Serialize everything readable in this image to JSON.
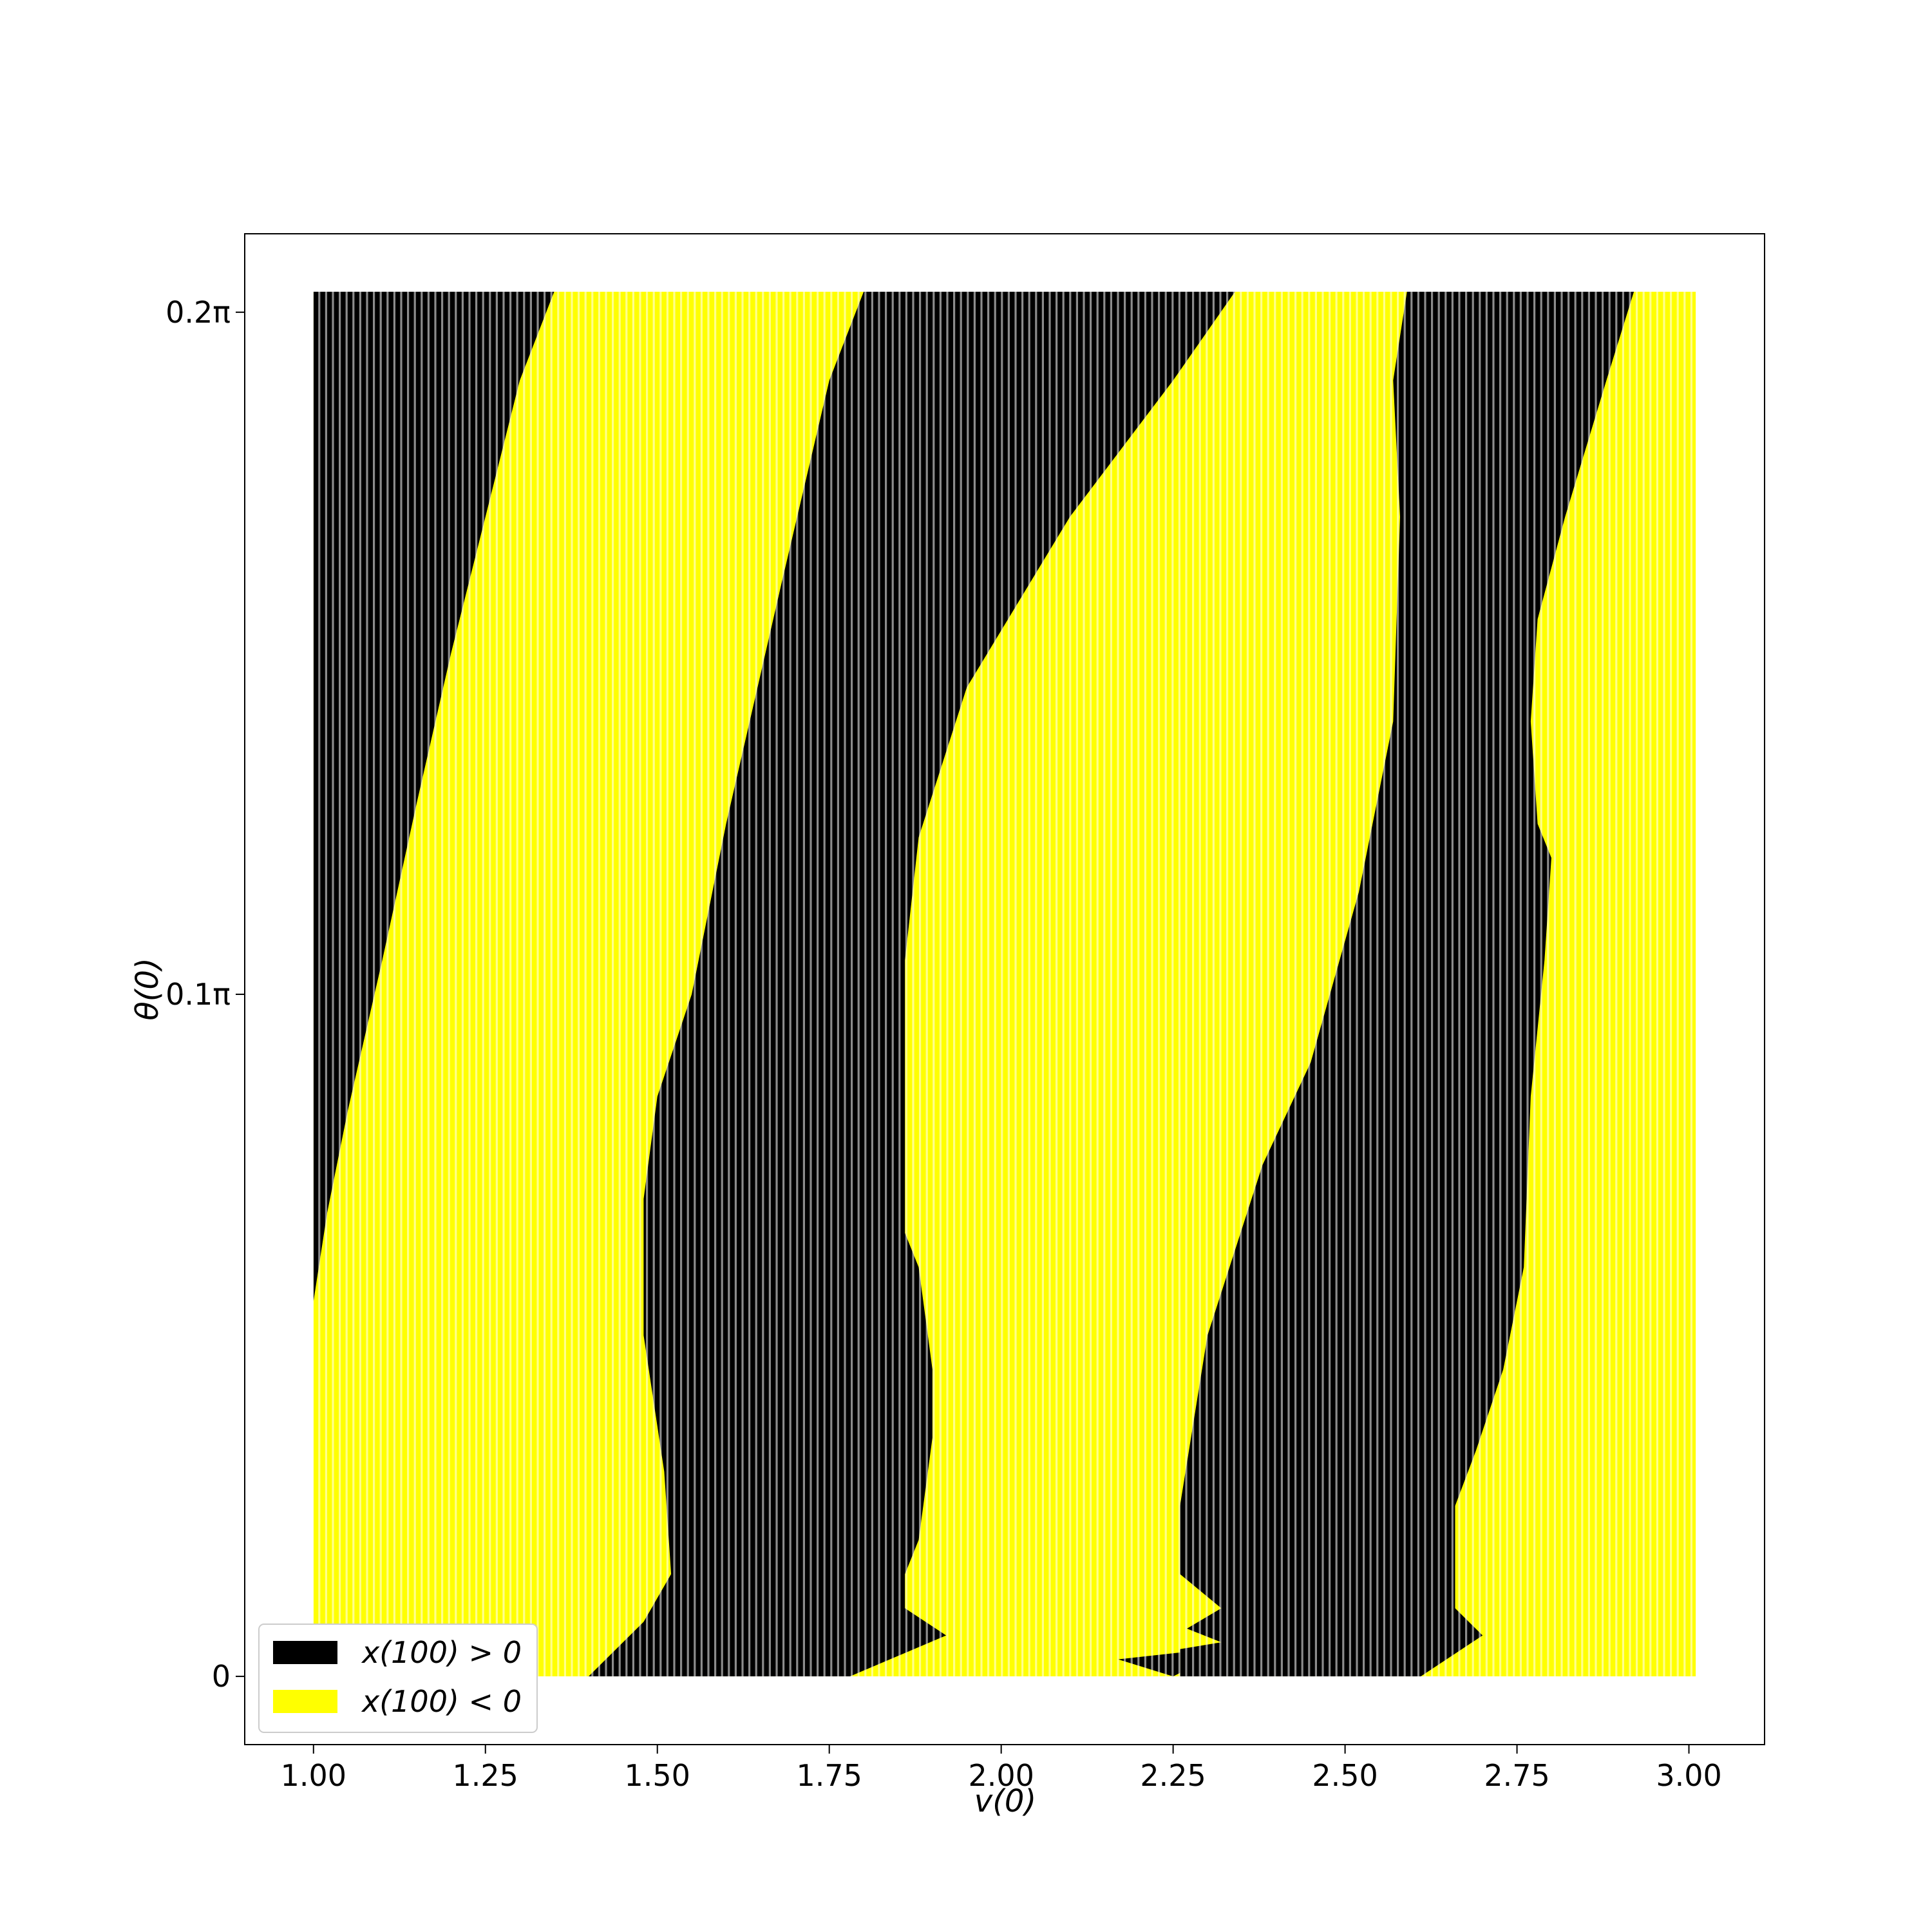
{
  "chart_data": {
    "type": "heatmap",
    "title": "",
    "xlabel": "v(0)",
    "ylabel": "θ(0)",
    "xlim": [
      0.9,
      3.11
    ],
    "ylim": [
      -0.01,
      0.2115
    ],
    "x_ticks": [
      {
        "value": 1.0,
        "label": "1.00"
      },
      {
        "value": 1.25,
        "label": "1.25"
      },
      {
        "value": 1.5,
        "label": "1.50"
      },
      {
        "value": 1.75,
        "label": "1.75"
      },
      {
        "value": 2.0,
        "label": "2.00"
      },
      {
        "value": 2.25,
        "label": "2.25"
      },
      {
        "value": 2.5,
        "label": "2.50"
      },
      {
        "value": 2.75,
        "label": "2.75"
      },
      {
        "value": 3.0,
        "label": "3.00"
      }
    ],
    "y_ticks": [
      {
        "value": 0.0,
        "label": "0"
      },
      {
        "value": 0.1,
        "label": "0.1π"
      },
      {
        "value": 0.2,
        "label": "0.2π"
      }
    ],
    "x_range": [
      1.0,
      3.01
    ],
    "y_range": [
      0.0,
      0.203
    ],
    "colors": {
      "positive": "#000000",
      "negative": "#ffff00"
    },
    "legend": {
      "position": "lower-left",
      "entries": [
        {
          "label": "x(100) > 0",
          "color": "#000000"
        },
        {
          "label": "x(100) < 0",
          "color": "#ffff00"
        }
      ]
    },
    "positive_regions": [
      {
        "name": "band-1",
        "boundary": [
          [
            1.0,
            0.203
          ],
          [
            1.35,
            0.203
          ],
          [
            1.3,
            0.19
          ],
          [
            1.25,
            0.17
          ],
          [
            1.2,
            0.15
          ],
          [
            1.15,
            0.128
          ],
          [
            1.1,
            0.105
          ],
          [
            1.05,
            0.083
          ],
          [
            1.02,
            0.068
          ],
          [
            1.0,
            0.055
          ]
        ]
      },
      {
        "name": "band-2",
        "boundary": [
          [
            1.8,
            0.203
          ],
          [
            2.34,
            0.203
          ],
          [
            2.25,
            0.19
          ],
          [
            2.1,
            0.17
          ],
          [
            1.95,
            0.145
          ],
          [
            1.88,
            0.123
          ],
          [
            1.86,
            0.105
          ],
          [
            1.86,
            0.065
          ],
          [
            1.88,
            0.06
          ],
          [
            1.9,
            0.045
          ],
          [
            1.9,
            0.035
          ],
          [
            1.88,
            0.02
          ],
          [
            1.86,
            0.015
          ],
          [
            1.86,
            0.01
          ],
          [
            1.92,
            0.006
          ],
          [
            1.85,
            0.003
          ],
          [
            1.78,
            0.0
          ],
          [
            1.4,
            0.0
          ],
          [
            1.48,
            0.008
          ],
          [
            1.52,
            0.015
          ],
          [
            1.51,
            0.03
          ],
          [
            1.48,
            0.05
          ],
          [
            1.48,
            0.07
          ],
          [
            1.5,
            0.085
          ],
          [
            1.55,
            0.1
          ],
          [
            1.6,
            0.125
          ],
          [
            1.68,
            0.16
          ],
          [
            1.75,
            0.19
          ]
        ]
      },
      {
        "name": "band-3",
        "boundary": [
          [
            2.59,
            0.203
          ],
          [
            2.92,
            0.203
          ],
          [
            2.88,
            0.19
          ],
          [
            2.82,
            0.17
          ],
          [
            2.78,
            0.155
          ],
          [
            2.77,
            0.14
          ],
          [
            2.78,
            0.125
          ],
          [
            2.8,
            0.12
          ],
          [
            2.79,
            0.105
          ],
          [
            2.77,
            0.085
          ],
          [
            2.76,
            0.06
          ],
          [
            2.73,
            0.045
          ],
          [
            2.69,
            0.033
          ],
          [
            2.66,
            0.025
          ],
          [
            2.66,
            0.01
          ],
          [
            2.7,
            0.006
          ],
          [
            2.67,
            0.004
          ],
          [
            2.61,
            0.0
          ],
          [
            2.26,
            0.0
          ],
          [
            2.26,
            0.004
          ],
          [
            2.32,
            0.005
          ],
          [
            2.27,
            0.007
          ],
          [
            2.32,
            0.01
          ],
          [
            2.26,
            0.015
          ],
          [
            2.26,
            0.025
          ],
          [
            2.3,
            0.05
          ],
          [
            2.38,
            0.075
          ],
          [
            2.45,
            0.09
          ],
          [
            2.52,
            0.115
          ],
          [
            2.57,
            0.14
          ],
          [
            2.58,
            0.17
          ],
          [
            2.57,
            0.19
          ]
        ]
      },
      {
        "name": "band-3-tail",
        "boundary": [
          [
            2.17,
            0.0025
          ],
          [
            2.26,
            0.0035
          ],
          [
            2.26,
            0.0005
          ],
          [
            2.25,
            0.0
          ]
        ]
      }
    ]
  }
}
